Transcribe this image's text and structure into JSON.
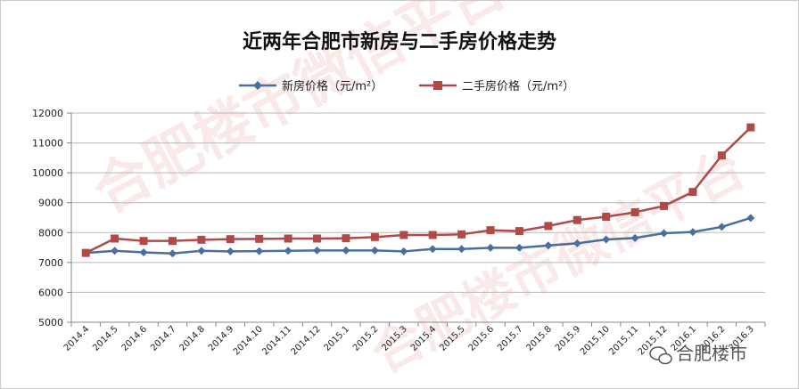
{
  "chart_data": {
    "type": "line",
    "title": "近两年合肥市新房与二手房价格走势",
    "categories": [
      "2014.4",
      "2014.5",
      "2014.6",
      "2014.7",
      "2014.8",
      "2014.9",
      "2014.10",
      "2014.11",
      "2014.12",
      "2015.1",
      "2015.2",
      "2015.3",
      "2015.4",
      "2015.5",
      "2015.6",
      "2015.7",
      "2015.8",
      "2015.9",
      "2015.10",
      "2015.11",
      "2015.12",
      "2016.1",
      "2016.2",
      "2016.3"
    ],
    "series": [
      {
        "name": "新房价格（元/m²）",
        "color": "#4a6f9f",
        "marker": "diamond",
        "values": [
          7320,
          7390,
          7340,
          7300,
          7390,
          7370,
          7380,
          7390,
          7400,
          7400,
          7400,
          7370,
          7450,
          7450,
          7490,
          7490,
          7570,
          7640,
          7770,
          7820,
          7980,
          8020,
          8190,
          8490
        ]
      },
      {
        "name": "二手房价格（元/m²）",
        "color": "#b04a48",
        "marker": "square",
        "values": [
          7320,
          7800,
          7720,
          7720,
          7760,
          7780,
          7790,
          7800,
          7800,
          7810,
          7850,
          7920,
          7920,
          7940,
          8080,
          8050,
          8220,
          8420,
          8530,
          8680,
          8890,
          9360,
          10580,
          11520
        ]
      }
    ],
    "ylim": [
      5000,
      12000
    ],
    "yticks": [
      5000,
      6000,
      7000,
      8000,
      9000,
      10000,
      11000,
      12000
    ],
    "grid": true,
    "legend_position": "top-center"
  },
  "watermark": {
    "text": "合肥楼市微信平台",
    "brand": "合肥楼市"
  },
  "colors": {
    "gridline": "#b9b9b9",
    "axis": "#888888",
    "border": "#cccccc"
  }
}
